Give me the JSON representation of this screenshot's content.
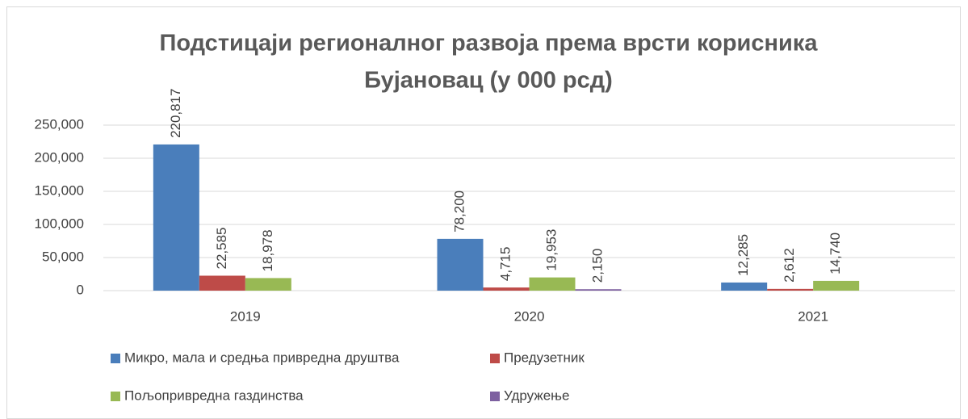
{
  "chart_data": {
    "type": "bar",
    "title": [
      "Подстицаји регионалног развоја према врсти корисника",
      "Бујановац (у 000 рсд)"
    ],
    "categories": [
      "2019",
      "2020",
      "2021"
    ],
    "series": [
      {
        "name": "Микро, мала и средња привредна друштва",
        "color": "#4a7ebb",
        "values": [
          220817,
          78200,
          12285
        ],
        "value_labels": [
          "220,817",
          "78,200",
          "12,285"
        ]
      },
      {
        "name": "Предузетник",
        "color": "#be4b48",
        "values": [
          22585,
          4715,
          2612
        ],
        "value_labels": [
          "22,585",
          "4,715",
          "2,612"
        ]
      },
      {
        "name": "Пољопривредна газдинства",
        "color": "#98b954",
        "values": [
          18978,
          19953,
          14740
        ],
        "value_labels": [
          "18,978",
          "19,953",
          "14,740"
        ]
      },
      {
        "name": "Удружење",
        "color": "#7d60a0",
        "values": [
          null,
          2150,
          null
        ],
        "value_labels": [
          null,
          "2,150",
          null
        ]
      }
    ],
    "ylim": [
      0,
      250000
    ],
    "yticks": [
      0,
      {
        "value": 50000,
        "label": "50,000"
      },
      {
        "value": 100000,
        "label": "100,000"
      },
      {
        "value": 150000,
        "label": "150,000"
      },
      {
        "value": 200000,
        "label": "200,000"
      },
      {
        "value": 250000,
        "label": "250,000"
      }
    ],
    "grid": true
  }
}
